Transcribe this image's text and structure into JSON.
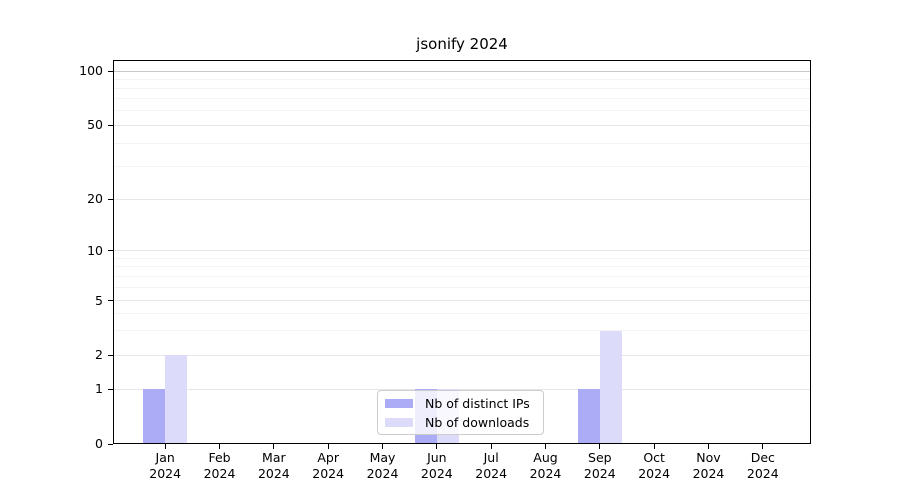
{
  "chart_data": {
    "type": "bar",
    "title": "jsonify 2024",
    "categories": [
      "Jan",
      "Feb",
      "Mar",
      "Apr",
      "May",
      "Jun",
      "Jul",
      "Aug",
      "Sep",
      "Oct",
      "Nov",
      "Dec"
    ],
    "x_year_label": "2024",
    "series": [
      {
        "name": "Nb of distinct IPs",
        "color": "#ababf6",
        "values": [
          1,
          0,
          0,
          0,
          0,
          1,
          0,
          0,
          1,
          0,
          0,
          0
        ]
      },
      {
        "name": "Nb of downloads",
        "color": "#dcdcfa",
        "values": [
          2,
          0,
          0,
          0,
          0,
          1,
          0,
          0,
          3,
          0,
          0,
          0
        ]
      }
    ],
    "y_axis": {
      "scale": "log-like with 0 baseline",
      "tick_labels": [
        "100",
        "50",
        "20",
        "10",
        "5",
        "2",
        "1",
        "0"
      ],
      "tick_values": [
        100,
        50,
        20,
        10,
        5,
        2,
        1,
        0
      ],
      "minor_gridline_values": [
        3,
        4,
        6,
        7,
        8,
        9,
        30,
        40,
        60,
        70,
        80,
        90
      ],
      "ylim": [
        0,
        120
      ]
    },
    "legend": {
      "items": [
        "Nb of distinct IPs",
        "Nb of downloads"
      ],
      "position": "lower center, inside plot"
    },
    "grid": true,
    "colors": {
      "top_gridline": "#c8c8c8",
      "major_gridline": "#e7e7e7",
      "minor_gridline": "#f3f3f3",
      "spine": "#000000"
    }
  }
}
